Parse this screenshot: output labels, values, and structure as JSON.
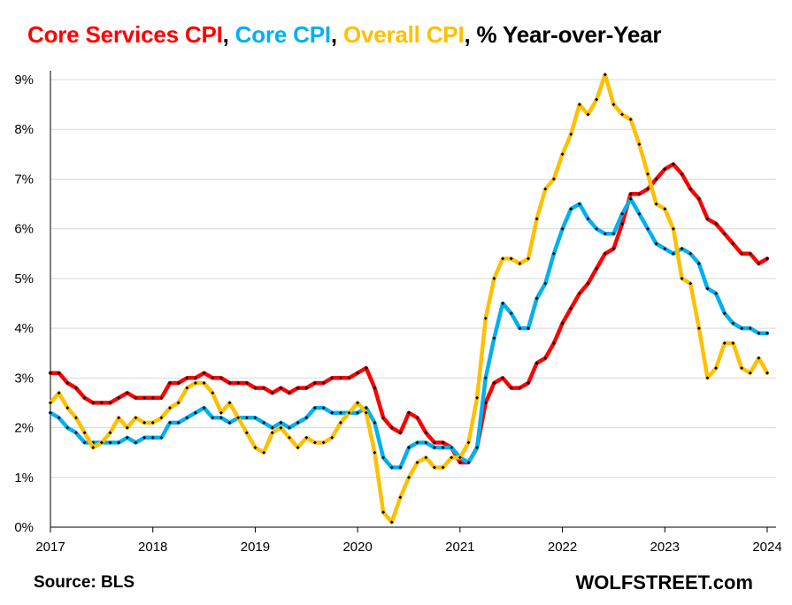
{
  "chart_data": {
    "type": "line",
    "title_parts": [
      {
        "text": "Core Services CPI",
        "color": "#ff0000"
      },
      {
        "text": ", ",
        "color": "#000000"
      },
      {
        "text": "Core CPI",
        "color": "#00b0f0"
      },
      {
        "text": ", ",
        "color": "#000000"
      },
      {
        "text": "Overall CPI",
        "color": "#ffc000"
      },
      {
        "text": ", % Year-over-Year",
        "color": "#000000"
      }
    ],
    "xlabel": "",
    "ylabel": "",
    "ylim": [
      0,
      9
    ],
    "xlim": [
      2017,
      2024
    ],
    "x_ticks": [
      "2017",
      "2018",
      "2019",
      "2020",
      "2021",
      "2022",
      "2023",
      "2024"
    ],
    "y_ticks": [
      "0%",
      "1%",
      "2%",
      "3%",
      "4%",
      "5%",
      "6%",
      "7%",
      "8%",
      "9%"
    ],
    "grid": "horizontal",
    "x_start": "2017-01",
    "frequency": "monthly",
    "series": [
      {
        "name": "Core Services CPI",
        "color": "#ff0000",
        "values": [
          3.1,
          3.1,
          2.9,
          2.8,
          2.6,
          2.5,
          2.5,
          2.5,
          2.6,
          2.7,
          2.6,
          2.6,
          2.6,
          2.6,
          2.9,
          2.9,
          3.0,
          3.0,
          3.1,
          3.0,
          3.0,
          2.9,
          2.9,
          2.9,
          2.8,
          2.8,
          2.7,
          2.8,
          2.7,
          2.8,
          2.8,
          2.9,
          2.9,
          3.0,
          3.0,
          3.0,
          3.1,
          3.2,
          2.8,
          2.2,
          2.0,
          1.9,
          2.3,
          2.2,
          1.9,
          1.7,
          1.7,
          1.6,
          1.3,
          1.3,
          1.6,
          2.5,
          2.9,
          3.0,
          2.8,
          2.8,
          2.9,
          3.3,
          3.4,
          3.7,
          4.1,
          4.4,
          4.7,
          4.9,
          5.2,
          5.5,
          5.6,
          6.1,
          6.7,
          6.7,
          6.8,
          7.0,
          7.2,
          7.3,
          7.1,
          6.8,
          6.6,
          6.2,
          6.1,
          5.9,
          5.7,
          5.5,
          5.5,
          5.3,
          5.4
        ]
      },
      {
        "name": "Core CPI",
        "color": "#00b0f0",
        "values": [
          2.3,
          2.2,
          2.0,
          1.9,
          1.7,
          1.7,
          1.7,
          1.7,
          1.7,
          1.8,
          1.7,
          1.8,
          1.8,
          1.8,
          2.1,
          2.1,
          2.2,
          2.3,
          2.4,
          2.2,
          2.2,
          2.1,
          2.2,
          2.2,
          2.2,
          2.1,
          2.0,
          2.1,
          2.0,
          2.1,
          2.2,
          2.4,
          2.4,
          2.3,
          2.3,
          2.3,
          2.3,
          2.4,
          2.1,
          1.4,
          1.2,
          1.2,
          1.6,
          1.7,
          1.7,
          1.6,
          1.6,
          1.6,
          1.4,
          1.3,
          1.6,
          3.0,
          3.8,
          4.5,
          4.3,
          4.0,
          4.0,
          4.6,
          4.9,
          5.5,
          6.0,
          6.4,
          6.5,
          6.2,
          6.0,
          5.9,
          5.9,
          6.3,
          6.6,
          6.3,
          6.0,
          5.7,
          5.6,
          5.5,
          5.6,
          5.5,
          5.3,
          4.8,
          4.7,
          4.3,
          4.1,
          4.0,
          4.0,
          3.9,
          3.9
        ]
      },
      {
        "name": "Overall CPI",
        "color": "#ffc000",
        "values": [
          2.5,
          2.7,
          2.4,
          2.2,
          1.9,
          1.6,
          1.7,
          1.9,
          2.2,
          2.0,
          2.2,
          2.1,
          2.1,
          2.2,
          2.4,
          2.5,
          2.8,
          2.9,
          2.9,
          2.7,
          2.3,
          2.5,
          2.2,
          1.9,
          1.6,
          1.5,
          1.9,
          2.0,
          1.8,
          1.6,
          1.8,
          1.7,
          1.7,
          1.8,
          2.1,
          2.3,
          2.5,
          2.3,
          1.5,
          0.3,
          0.1,
          0.6,
          1.0,
          1.3,
          1.4,
          1.2,
          1.2,
          1.4,
          1.4,
          1.7,
          2.6,
          4.2,
          5.0,
          5.4,
          5.4,
          5.3,
          5.4,
          6.2,
          6.8,
          7.0,
          7.5,
          7.9,
          8.5,
          8.3,
          8.6,
          9.1,
          8.5,
          8.3,
          8.2,
          7.7,
          7.1,
          6.5,
          6.4,
          6.0,
          5.0,
          4.9,
          4.0,
          3.0,
          3.2,
          3.7,
          3.7,
          3.2,
          3.1,
          3.4,
          3.1
        ]
      }
    ]
  },
  "footer": {
    "source": "Source: BLS",
    "brand": "WOLFSTREET.com"
  }
}
